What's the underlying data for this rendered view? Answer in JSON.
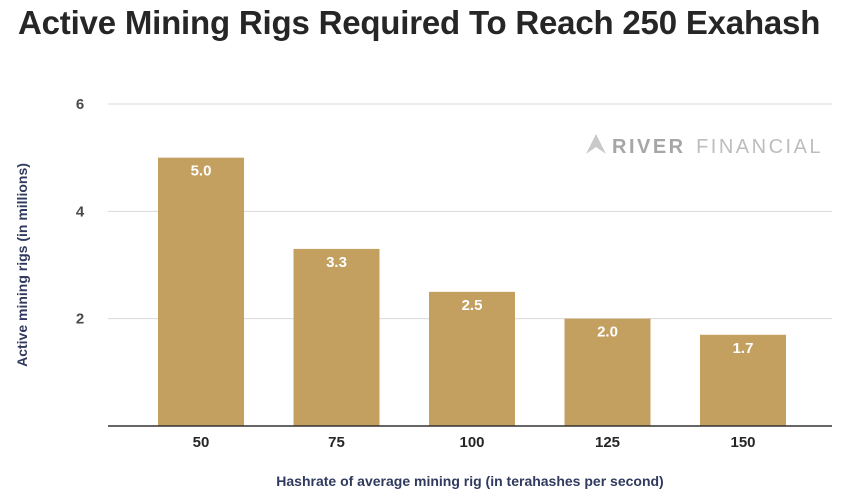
{
  "chart_data": {
    "type": "bar",
    "title": "Active Mining Rigs Required To Reach 250 Exahash",
    "xlabel": "Hashrate of average mining rig (in terahashes per second)",
    "ylabel": "Active mining rigs (in millions)",
    "categories": [
      "50",
      "75",
      "100",
      "125",
      "150"
    ],
    "values": [
      5.0,
      3.3,
      2.5,
      2.0,
      1.7
    ],
    "data_labels": [
      "5.0",
      "3.3",
      "2.5",
      "2.0",
      "1.7"
    ],
    "ylim": [
      0,
      6
    ],
    "yticks": [
      2,
      4,
      6
    ],
    "ytick_labels": [
      "2",
      "4",
      "6"
    ],
    "grid": true,
    "legend": "none",
    "bar_color": "#c4a060"
  },
  "watermark": {
    "brand_strong": "RIVER",
    "brand_light": "FINANCIAL",
    "color": "#b3b3b3"
  }
}
